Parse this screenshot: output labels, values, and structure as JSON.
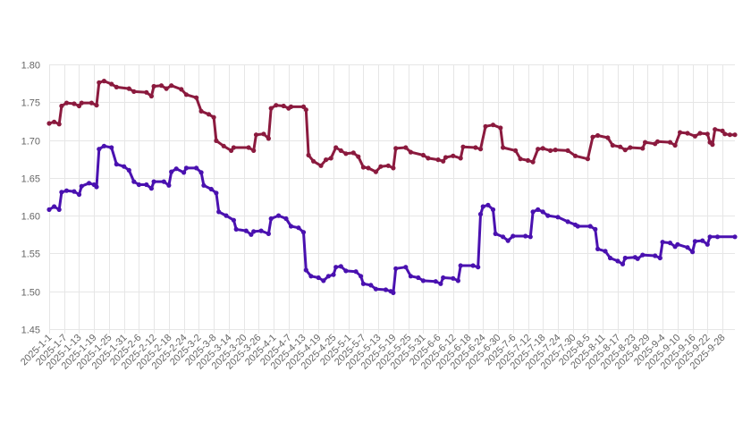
{
  "chart_data": {
    "type": "line",
    "title": "",
    "xlabel": "",
    "ylabel": "",
    "ylim": [
      1.45,
      1.8
    ],
    "yticks": [
      "1.45",
      "1.50",
      "1.55",
      "1.60",
      "1.65",
      "1.70",
      "1.75",
      "1.80"
    ],
    "grid": true,
    "legend": "none",
    "x_tick_labels": [
      "2025-1-1",
      "2025-1-7",
      "2025-1-13",
      "2025-1-19",
      "2025-1-25",
      "2025-1-31",
      "2025-2-6",
      "2025-2-12",
      "2025-2-18",
      "2025-2-24",
      "2025-3-2",
      "2025-3-8",
      "2025-3-14",
      "2025-3-20",
      "2025-3-26",
      "2025-4-1",
      "2025-4-7",
      "2025-4-13",
      "2025-4-19",
      "2025-4-25",
      "2025-5-1",
      "2025-5-7",
      "2025-5-13",
      "2025-5-19",
      "2025-5-25",
      "2025-5-31",
      "2025-6-6",
      "2025-6-12",
      "2025-6-18",
      "2025-6-24",
      "2025-6-30",
      "2025-7-6",
      "2025-7-12",
      "2025-7-18",
      "2025-7-24",
      "2025-7-30",
      "2025-8-5",
      "2025-8-11",
      "2025-8-17",
      "2025-8-23",
      "2025-8-29",
      "2025-9-4",
      "2025-9-10",
      "2025-9-16",
      "2025-9-22",
      "2025-9-28"
    ],
    "x_start": "2025-1-1",
    "x_end": "2025-10-3",
    "series": [
      {
        "color": "#8b1a3e",
        "points": [
          [
            "2025-1-1",
            1.722
          ],
          [
            "2025-1-3",
            1.724
          ],
          [
            "2025-1-5",
            1.721
          ],
          [
            "2025-1-6",
            1.745
          ],
          [
            "2025-1-8",
            1.749
          ],
          [
            "2025-1-11",
            1.748
          ],
          [
            "2025-1-13",
            1.745
          ],
          [
            "2025-1-14",
            1.749
          ],
          [
            "2025-1-18",
            1.749
          ],
          [
            "2025-1-20",
            1.746
          ],
          [
            "2025-1-21",
            1.776
          ],
          [
            "2025-1-23",
            1.778
          ],
          [
            "2025-1-26",
            1.774
          ],
          [
            "2025-1-28",
            1.77
          ],
          [
            "2025-2-2",
            1.768
          ],
          [
            "2025-2-4",
            1.764
          ],
          [
            "2025-2-9",
            1.763
          ],
          [
            "2025-2-11",
            1.758
          ],
          [
            "2025-2-12",
            1.771
          ],
          [
            "2025-2-15",
            1.772
          ],
          [
            "2025-2-17",
            1.768
          ],
          [
            "2025-2-19",
            1.772
          ],
          [
            "2025-2-23",
            1.767
          ],
          [
            "2025-2-25",
            1.76
          ],
          [
            "2025-3-1",
            1.756
          ],
          [
            "2025-3-3",
            1.738
          ],
          [
            "2025-3-6",
            1.734
          ],
          [
            "2025-3-8",
            1.73
          ],
          [
            "2025-3-9",
            1.699
          ],
          [
            "2025-3-12",
            1.692
          ],
          [
            "2025-3-15",
            1.686
          ],
          [
            "2025-3-16",
            1.69
          ],
          [
            "2025-3-22",
            1.69
          ],
          [
            "2025-3-24",
            1.686
          ],
          [
            "2025-3-25",
            1.707
          ],
          [
            "2025-3-28",
            1.708
          ],
          [
            "2025-3-30",
            1.702
          ],
          [
            "2025-3-31",
            1.742
          ],
          [
            "2025-4-2",
            1.746
          ],
          [
            "2025-4-5",
            1.745
          ],
          [
            "2025-4-7",
            1.742
          ],
          [
            "2025-4-8",
            1.744
          ],
          [
            "2025-4-13",
            1.744
          ],
          [
            "2025-4-14",
            1.74
          ],
          [
            "2025-4-15",
            1.68
          ],
          [
            "2025-4-17",
            1.672
          ],
          [
            "2025-4-20",
            1.666
          ],
          [
            "2025-4-22",
            1.674
          ],
          [
            "2025-4-24",
            1.676
          ],
          [
            "2025-4-26",
            1.69
          ],
          [
            "2025-4-28",
            1.686
          ],
          [
            "2025-4-30",
            1.682
          ],
          [
            "2025-5-3",
            1.683
          ],
          [
            "2025-5-5",
            1.678
          ],
          [
            "2025-5-7",
            1.664
          ],
          [
            "2025-5-9",
            1.663
          ],
          [
            "2025-5-12",
            1.658
          ],
          [
            "2025-5-14",
            1.665
          ],
          [
            "2025-5-17",
            1.666
          ],
          [
            "2025-5-19",
            1.663
          ],
          [
            "2025-5-20",
            1.689
          ],
          [
            "2025-5-24",
            1.69
          ],
          [
            "2025-5-26",
            1.684
          ],
          [
            "2025-5-31",
            1.68
          ],
          [
            "2025-6-2",
            1.676
          ],
          [
            "2025-6-6",
            1.674
          ],
          [
            "2025-6-8",
            1.672
          ],
          [
            "2025-6-9",
            1.677
          ],
          [
            "2025-6-12",
            1.679
          ],
          [
            "2025-6-15",
            1.676
          ],
          [
            "2025-6-16",
            1.691
          ],
          [
            "2025-6-21",
            1.69
          ],
          [
            "2025-6-23",
            1.688
          ],
          [
            "2025-6-25",
            1.718
          ],
          [
            "2025-6-28",
            1.72
          ],
          [
            "2025-7-1",
            1.716
          ],
          [
            "2025-7-2",
            1.69
          ],
          [
            "2025-7-7",
            1.686
          ],
          [
            "2025-7-9",
            1.675
          ],
          [
            "2025-7-12",
            1.673
          ],
          [
            "2025-7-14",
            1.671
          ],
          [
            "2025-7-16",
            1.688
          ],
          [
            "2025-7-18",
            1.689
          ],
          [
            "2025-7-21",
            1.686
          ],
          [
            "2025-7-23",
            1.687
          ],
          [
            "2025-7-28",
            1.686
          ],
          [
            "2025-7-31",
            1.679
          ],
          [
            "2025-8-5",
            1.675
          ],
          [
            "2025-8-7",
            1.704
          ],
          [
            "2025-8-9",
            1.706
          ],
          [
            "2025-8-13",
            1.703
          ],
          [
            "2025-8-15",
            1.693
          ],
          [
            "2025-8-18",
            1.691
          ],
          [
            "2025-8-20",
            1.687
          ],
          [
            "2025-8-22",
            1.69
          ],
          [
            "2025-8-27",
            1.689
          ],
          [
            "2025-8-28",
            1.697
          ],
          [
            "2025-9-1",
            1.695
          ],
          [
            "2025-9-2",
            1.698
          ],
          [
            "2025-9-7",
            1.697
          ],
          [
            "2025-9-9",
            1.693
          ],
          [
            "2025-9-11",
            1.71
          ],
          [
            "2025-9-14",
            1.709
          ],
          [
            "2025-9-17",
            1.705
          ],
          [
            "2025-9-19",
            1.709
          ],
          [
            "2025-9-22",
            1.708
          ],
          [
            "2025-9-23",
            1.697
          ],
          [
            "2025-9-24",
            1.694
          ],
          [
            "2025-9-25",
            1.714
          ],
          [
            "2025-9-28",
            1.712
          ],
          [
            "2025-9-29",
            1.708
          ],
          [
            "2025-10-1",
            1.707
          ],
          [
            "2025-10-3",
            1.707
          ]
        ]
      },
      {
        "color": "#4a11b0",
        "points": [
          [
            "2025-1-1",
            1.608
          ],
          [
            "2025-1-3",
            1.612
          ],
          [
            "2025-1-5",
            1.608
          ],
          [
            "2025-1-6",
            1.631
          ],
          [
            "2025-1-8",
            1.633
          ],
          [
            "2025-1-11",
            1.632
          ],
          [
            "2025-1-13",
            1.628
          ],
          [
            "2025-1-14",
            1.639
          ],
          [
            "2025-1-17",
            1.643
          ],
          [
            "2025-1-19",
            1.641
          ],
          [
            "2025-1-20",
            1.638
          ],
          [
            "2025-1-21",
            1.688
          ],
          [
            "2025-1-23",
            1.692
          ],
          [
            "2025-1-26",
            1.69
          ],
          [
            "2025-1-28",
            1.668
          ],
          [
            "2025-1-31",
            1.665
          ],
          [
            "2025-2-2",
            1.66
          ],
          [
            "2025-2-4",
            1.645
          ],
          [
            "2025-2-6",
            1.641
          ],
          [
            "2025-2-9",
            1.641
          ],
          [
            "2025-2-11",
            1.636
          ],
          [
            "2025-2-12",
            1.645
          ],
          [
            "2025-2-16",
            1.645
          ],
          [
            "2025-2-18",
            1.64
          ],
          [
            "2025-2-19",
            1.658
          ],
          [
            "2025-2-21",
            1.662
          ],
          [
            "2025-2-24",
            1.657
          ],
          [
            "2025-2-25",
            1.663
          ],
          [
            "2025-3-1",
            1.663
          ],
          [
            "2025-3-3",
            1.657
          ],
          [
            "2025-3-4",
            1.64
          ],
          [
            "2025-3-7",
            1.635
          ],
          [
            "2025-3-9",
            1.63
          ],
          [
            "2025-3-10",
            1.605
          ],
          [
            "2025-3-13",
            1.6
          ],
          [
            "2025-3-16",
            1.594
          ],
          [
            "2025-3-17",
            1.582
          ],
          [
            "2025-3-21",
            1.58
          ],
          [
            "2025-3-23",
            1.575
          ],
          [
            "2025-3-24",
            1.579
          ],
          [
            "2025-3-27",
            1.58
          ],
          [
            "2025-3-30",
            1.576
          ],
          [
            "2025-3-31",
            1.596
          ],
          [
            "2025-4-3",
            1.6
          ],
          [
            "2025-4-6",
            1.596
          ],
          [
            "2025-4-8",
            1.586
          ],
          [
            "2025-4-11",
            1.584
          ],
          [
            "2025-4-13",
            1.578
          ],
          [
            "2025-4-14",
            1.528
          ],
          [
            "2025-4-16",
            1.52
          ],
          [
            "2025-4-19",
            1.518
          ],
          [
            "2025-4-21",
            1.514
          ],
          [
            "2025-4-23",
            1.52
          ],
          [
            "2025-4-25",
            1.522
          ],
          [
            "2025-4-26",
            1.532
          ],
          [
            "2025-4-28",
            1.533
          ],
          [
            "2025-4-30",
            1.527
          ],
          [
            "2025-5-4",
            1.526
          ],
          [
            "2025-5-6",
            1.52
          ],
          [
            "2025-5-7",
            1.51
          ],
          [
            "2025-5-10",
            1.508
          ],
          [
            "2025-5-12",
            1.503
          ],
          [
            "2025-5-16",
            1.502
          ],
          [
            "2025-5-18",
            1.5
          ],
          [
            "2025-5-19",
            1.498
          ],
          [
            "2025-5-20",
            1.53
          ],
          [
            "2025-5-24",
            1.532
          ],
          [
            "2025-5-26",
            1.52
          ],
          [
            "2025-5-29",
            1.518
          ],
          [
            "2025-5-31",
            1.514
          ],
          [
            "2025-6-5",
            1.513
          ],
          [
            "2025-6-7",
            1.51
          ],
          [
            "2025-6-8",
            1.518
          ],
          [
            "2025-6-12",
            1.517
          ],
          [
            "2025-6-14",
            1.514
          ],
          [
            "2025-6-15",
            1.534
          ],
          [
            "2025-6-20",
            1.534
          ],
          [
            "2025-6-22",
            1.532
          ],
          [
            "2025-6-23",
            1.602
          ],
          [
            "2025-6-24",
            1.612
          ],
          [
            "2025-6-26",
            1.614
          ],
          [
            "2025-6-28",
            1.608
          ],
          [
            "2025-6-29",
            1.576
          ],
          [
            "2025-7-2",
            1.572
          ],
          [
            "2025-7-4",
            1.567
          ],
          [
            "2025-7-6",
            1.573
          ],
          [
            "2025-7-11",
            1.573
          ],
          [
            "2025-7-13",
            1.572
          ],
          [
            "2025-7-14",
            1.605
          ],
          [
            "2025-7-16",
            1.608
          ],
          [
            "2025-7-18",
            1.605
          ],
          [
            "2025-7-20",
            1.6
          ],
          [
            "2025-7-24",
            1.598
          ],
          [
            "2025-7-28",
            1.592
          ],
          [
            "2025-7-31",
            1.588
          ],
          [
            "2025-8-1",
            1.586
          ],
          [
            "2025-8-6",
            1.586
          ],
          [
            "2025-8-8",
            1.582
          ],
          [
            "2025-8-9",
            1.556
          ],
          [
            "2025-8-12",
            1.553
          ],
          [
            "2025-8-14",
            1.544
          ],
          [
            "2025-8-17",
            1.54
          ],
          [
            "2025-8-19",
            1.536
          ],
          [
            "2025-8-20",
            1.544
          ],
          [
            "2025-8-24",
            1.545
          ],
          [
            "2025-8-25",
            1.543
          ],
          [
            "2025-8-27",
            1.548
          ],
          [
            "2025-9-1",
            1.547
          ],
          [
            "2025-9-3",
            1.544
          ],
          [
            "2025-9-4",
            1.565
          ],
          [
            "2025-9-7",
            1.564
          ],
          [
            "2025-9-9",
            1.559
          ],
          [
            "2025-9-10",
            1.562
          ],
          [
            "2025-9-14",
            1.558
          ],
          [
            "2025-9-16",
            1.552
          ],
          [
            "2025-9-17",
            1.566
          ],
          [
            "2025-9-20",
            1.567
          ],
          [
            "2025-9-22",
            1.562
          ],
          [
            "2025-9-23",
            1.572
          ],
          [
            "2025-9-26",
            1.572
          ],
          [
            "2025-10-3",
            1.572
          ]
        ]
      }
    ]
  }
}
